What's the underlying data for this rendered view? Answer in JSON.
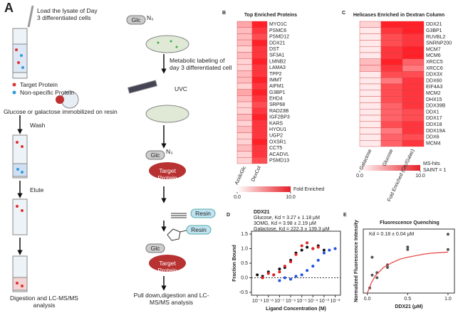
{
  "panels": {
    "A": {
      "label": "A",
      "load": "Load the lysate of Day 3 differentiated cells",
      "target": "Target Protein",
      "nonspecific": "Non-specific Protein",
      "resin_text": "Glucose or galactose immobilized on resin",
      "wash": "Wash",
      "elute": "Elute",
      "digestion": "Digestion and LC-MS/MS analysis",
      "glc1": "Glc",
      "n3_1": "N₃",
      "labeling": "Metabolic labeling of day 3 differentiated cell",
      "uvc": "UVC",
      "glc2": "Glc",
      "n3_2": "N₃",
      "target2": "Target Protein",
      "resin1": "Resin",
      "resin2": "Resin",
      "glc3": "Glc",
      "target3": "Target Protein",
      "pulldown": "Pull down,digestion and LC-MS/MS analysis"
    }
  },
  "chart_data": [
    {
      "type": "heatmap",
      "label": "B",
      "title": "Top Enriched Proteins",
      "rows": [
        "MYO1C",
        "PSMC6",
        "PSMD12",
        "DDX21",
        "DST",
        "SF3A1",
        "LMNB2",
        "LAMA3",
        "TPP2",
        "IMMT",
        "AIFM1",
        "G3BP1",
        "EHD4",
        "SRP68",
        "RAD23B",
        "IGF2BP3",
        "KARS",
        "HYOU1",
        "UGP2",
        "OXSR1",
        "CCT5",
        "ACADVL",
        "PSMD13"
      ],
      "columns": [
        "AzidoGlc",
        "DexCol"
      ],
      "values": [
        [
          4,
          10
        ],
        [
          3,
          9
        ],
        [
          3,
          8
        ],
        [
          3,
          10
        ],
        [
          2,
          9
        ],
        [
          3,
          9
        ],
        [
          2,
          10
        ],
        [
          2,
          9
        ],
        [
          3,
          9
        ],
        [
          3,
          10
        ],
        [
          2,
          9
        ],
        [
          4,
          10
        ],
        [
          3,
          9
        ],
        [
          2,
          8
        ],
        [
          2,
          9
        ],
        [
          3,
          10
        ],
        [
          2,
          9
        ],
        [
          3,
          9
        ],
        [
          2,
          9
        ],
        [
          2,
          10
        ],
        [
          3,
          9
        ],
        [
          2,
          9
        ],
        [
          2,
          8
        ]
      ],
      "clim": [
        0,
        10
      ],
      "colorbar_ticks": [
        {
          "value": 0,
          "label": "0.0"
        },
        {
          "value": 10,
          "label": "10.0"
        }
      ],
      "colorbar_label": "Fold Enriched"
    },
    {
      "type": "heatmap",
      "label": "C",
      "title": "Helicases Enriched in Dextran Column",
      "rows": [
        "DDX21",
        "G3BP1",
        "RUVBL2",
        "SNRNP200",
        "MCM7",
        "MCM6",
        "XRCC5",
        "XRCC6",
        "DDX3X",
        "DDX60",
        "EIF4A3",
        "MCM2",
        "DHX15",
        "DDX39B",
        "DDX1",
        "DDX17",
        "DDX18",
        "DDX19A",
        "DDX6",
        "MCM4"
      ],
      "columns": [
        "Galactose",
        "Glucose",
        "Fold Enriched (Glc/Galac)"
      ],
      "values": [
        [
          2,
          10,
          10
        ],
        [
          1,
          9,
          10
        ],
        [
          1,
          8,
          9
        ],
        [
          1,
          8,
          9
        ],
        [
          1,
          9,
          10
        ],
        [
          1,
          9,
          10
        ],
        [
          3,
          10,
          7
        ],
        [
          3,
          9,
          6
        ],
        [
          1,
          8,
          8
        ],
        [
          1,
          6,
          9
        ],
        [
          1,
          8,
          9
        ],
        [
          1,
          8,
          9
        ],
        [
          1,
          8,
          9
        ],
        [
          1,
          7,
          9
        ],
        [
          1,
          7,
          8
        ],
        [
          1,
          7,
          8
        ],
        [
          1,
          8,
          9
        ],
        [
          1,
          6,
          9
        ],
        [
          1,
          7,
          8
        ],
        [
          1,
          7,
          9
        ]
      ],
      "clim": [
        0,
        10
      ],
      "colorbar_ticks": [
        {
          "value": 0,
          "label": "0.0"
        },
        {
          "value": 10,
          "label": "10.0"
        }
      ],
      "colorbar_label": "MS-hits",
      "colorbar_note": "SAINT = 1"
    },
    {
      "type": "scatter",
      "label": "D",
      "title": "DDX21",
      "xlabel": "Ligand Concentration (M)",
      "ylabel": "Fraction Bound",
      "xscale": "log",
      "xlim": [
        3e-10,
        0.03
      ],
      "ylim": [
        -0.6,
        1.6
      ],
      "xticks": [
        {
          "value": 1e-09,
          "label": "10⁻⁹"
        },
        {
          "value": 1e-08,
          "label": "10⁻⁸"
        },
        {
          "value": 1e-07,
          "label": "10⁻⁷"
        },
        {
          "value": 1e-06,
          "label": "10⁻⁶"
        },
        {
          "value": 1e-05,
          "label": "10⁻⁵"
        },
        {
          "value": 0.0001,
          "label": "10⁻⁴"
        },
        {
          "value": 0.001,
          "label": "10⁻³"
        },
        {
          "value": 0.01,
          "label": "10⁻²"
        }
      ],
      "yticks": [
        -0.5,
        {
          "value": 0,
          "label": "0.0"
        },
        0.5,
        {
          "value": 1,
          "label": "1.0"
        },
        1.5
      ],
      "series": [
        {
          "name": "Glucose, Kd = 3.27 ± 1.18 μM",
          "color": "#111111",
          "x": [
            1e-09,
            3e-09,
            1e-08,
            3e-08,
            1e-07,
            3e-07,
            1e-06,
            3e-06,
            1e-05,
            3e-05,
            0.0001,
            0.0003,
            0.001
          ],
          "values": [
            0.1,
            0.05,
            0.2,
            0.1,
            0.3,
            0.35,
            0.6,
            0.85,
            0.95,
            1.05,
            1.0,
            1.1,
            0.95
          ]
        },
        {
          "name": "3OMG, Kd = 3.98 ± 2.19 μM",
          "color": "#e02020",
          "x": [
            3e-09,
            1e-08,
            3e-08,
            1e-07,
            3e-07,
            1e-06,
            3e-06,
            1e-05,
            3e-05,
            0.0001,
            0.0003
          ],
          "values": [
            0.0,
            0.15,
            0.1,
            0.2,
            0.4,
            0.55,
            0.8,
            1.1,
            1.2,
            1.0,
            1.05
          ]
        },
        {
          "name": "Galactose, Kd = 222.3 ± 139.3 μM",
          "color": "#2050e0",
          "x": [
            1e-07,
            3e-07,
            1e-06,
            3e-06,
            1e-05,
            3e-05,
            0.0001,
            0.0003,
            0.001,
            0.003,
            0.01
          ],
          "values": [
            -0.1,
            0.0,
            -0.05,
            0.05,
            0.1,
            0.25,
            0.4,
            0.6,
            0.85,
            0.95,
            1.0
          ]
        }
      ]
    },
    {
      "type": "scatter",
      "label": "E",
      "title": "Fluorescence Quenching",
      "annotation": "Kd = 0.18 ± 0.04 μM",
      "xlabel": "DDX21 (μM)",
      "ylabel": "Normalized Fluorescence Intensity",
      "xlim": [
        -0.05,
        1.08
      ],
      "ylim": [
        0,
        1.25
      ],
      "xticks": [
        {
          "value": 0,
          "label": "0.0"
        },
        0.5,
        {
          "value": 1,
          "label": "1.0"
        }
      ],
      "series": [
        {
          "color": "#555555",
          "x": [
            0.03,
            0.06,
            0.06,
            0.12,
            0.12,
            0.25,
            0.25,
            0.5,
            0.5,
            1.0,
            1.0
          ],
          "values": [
            0.1,
            0.35,
            0.7,
            0.3,
            0.4,
            0.5,
            0.55,
            0.85,
            0.9,
            0.85,
            1.15
          ]
        },
        {
          "color": "#e84040",
          "line": true,
          "x": [
            0,
            0.05,
            0.1,
            0.2,
            0.3,
            0.4,
            0.5,
            0.6,
            0.7,
            0.8,
            0.9,
            1.0
          ],
          "values": [
            0,
            0.2,
            0.34,
            0.5,
            0.59,
            0.66,
            0.7,
            0.73,
            0.76,
            0.78,
            0.79,
            0.8
          ]
        }
      ]
    }
  ]
}
